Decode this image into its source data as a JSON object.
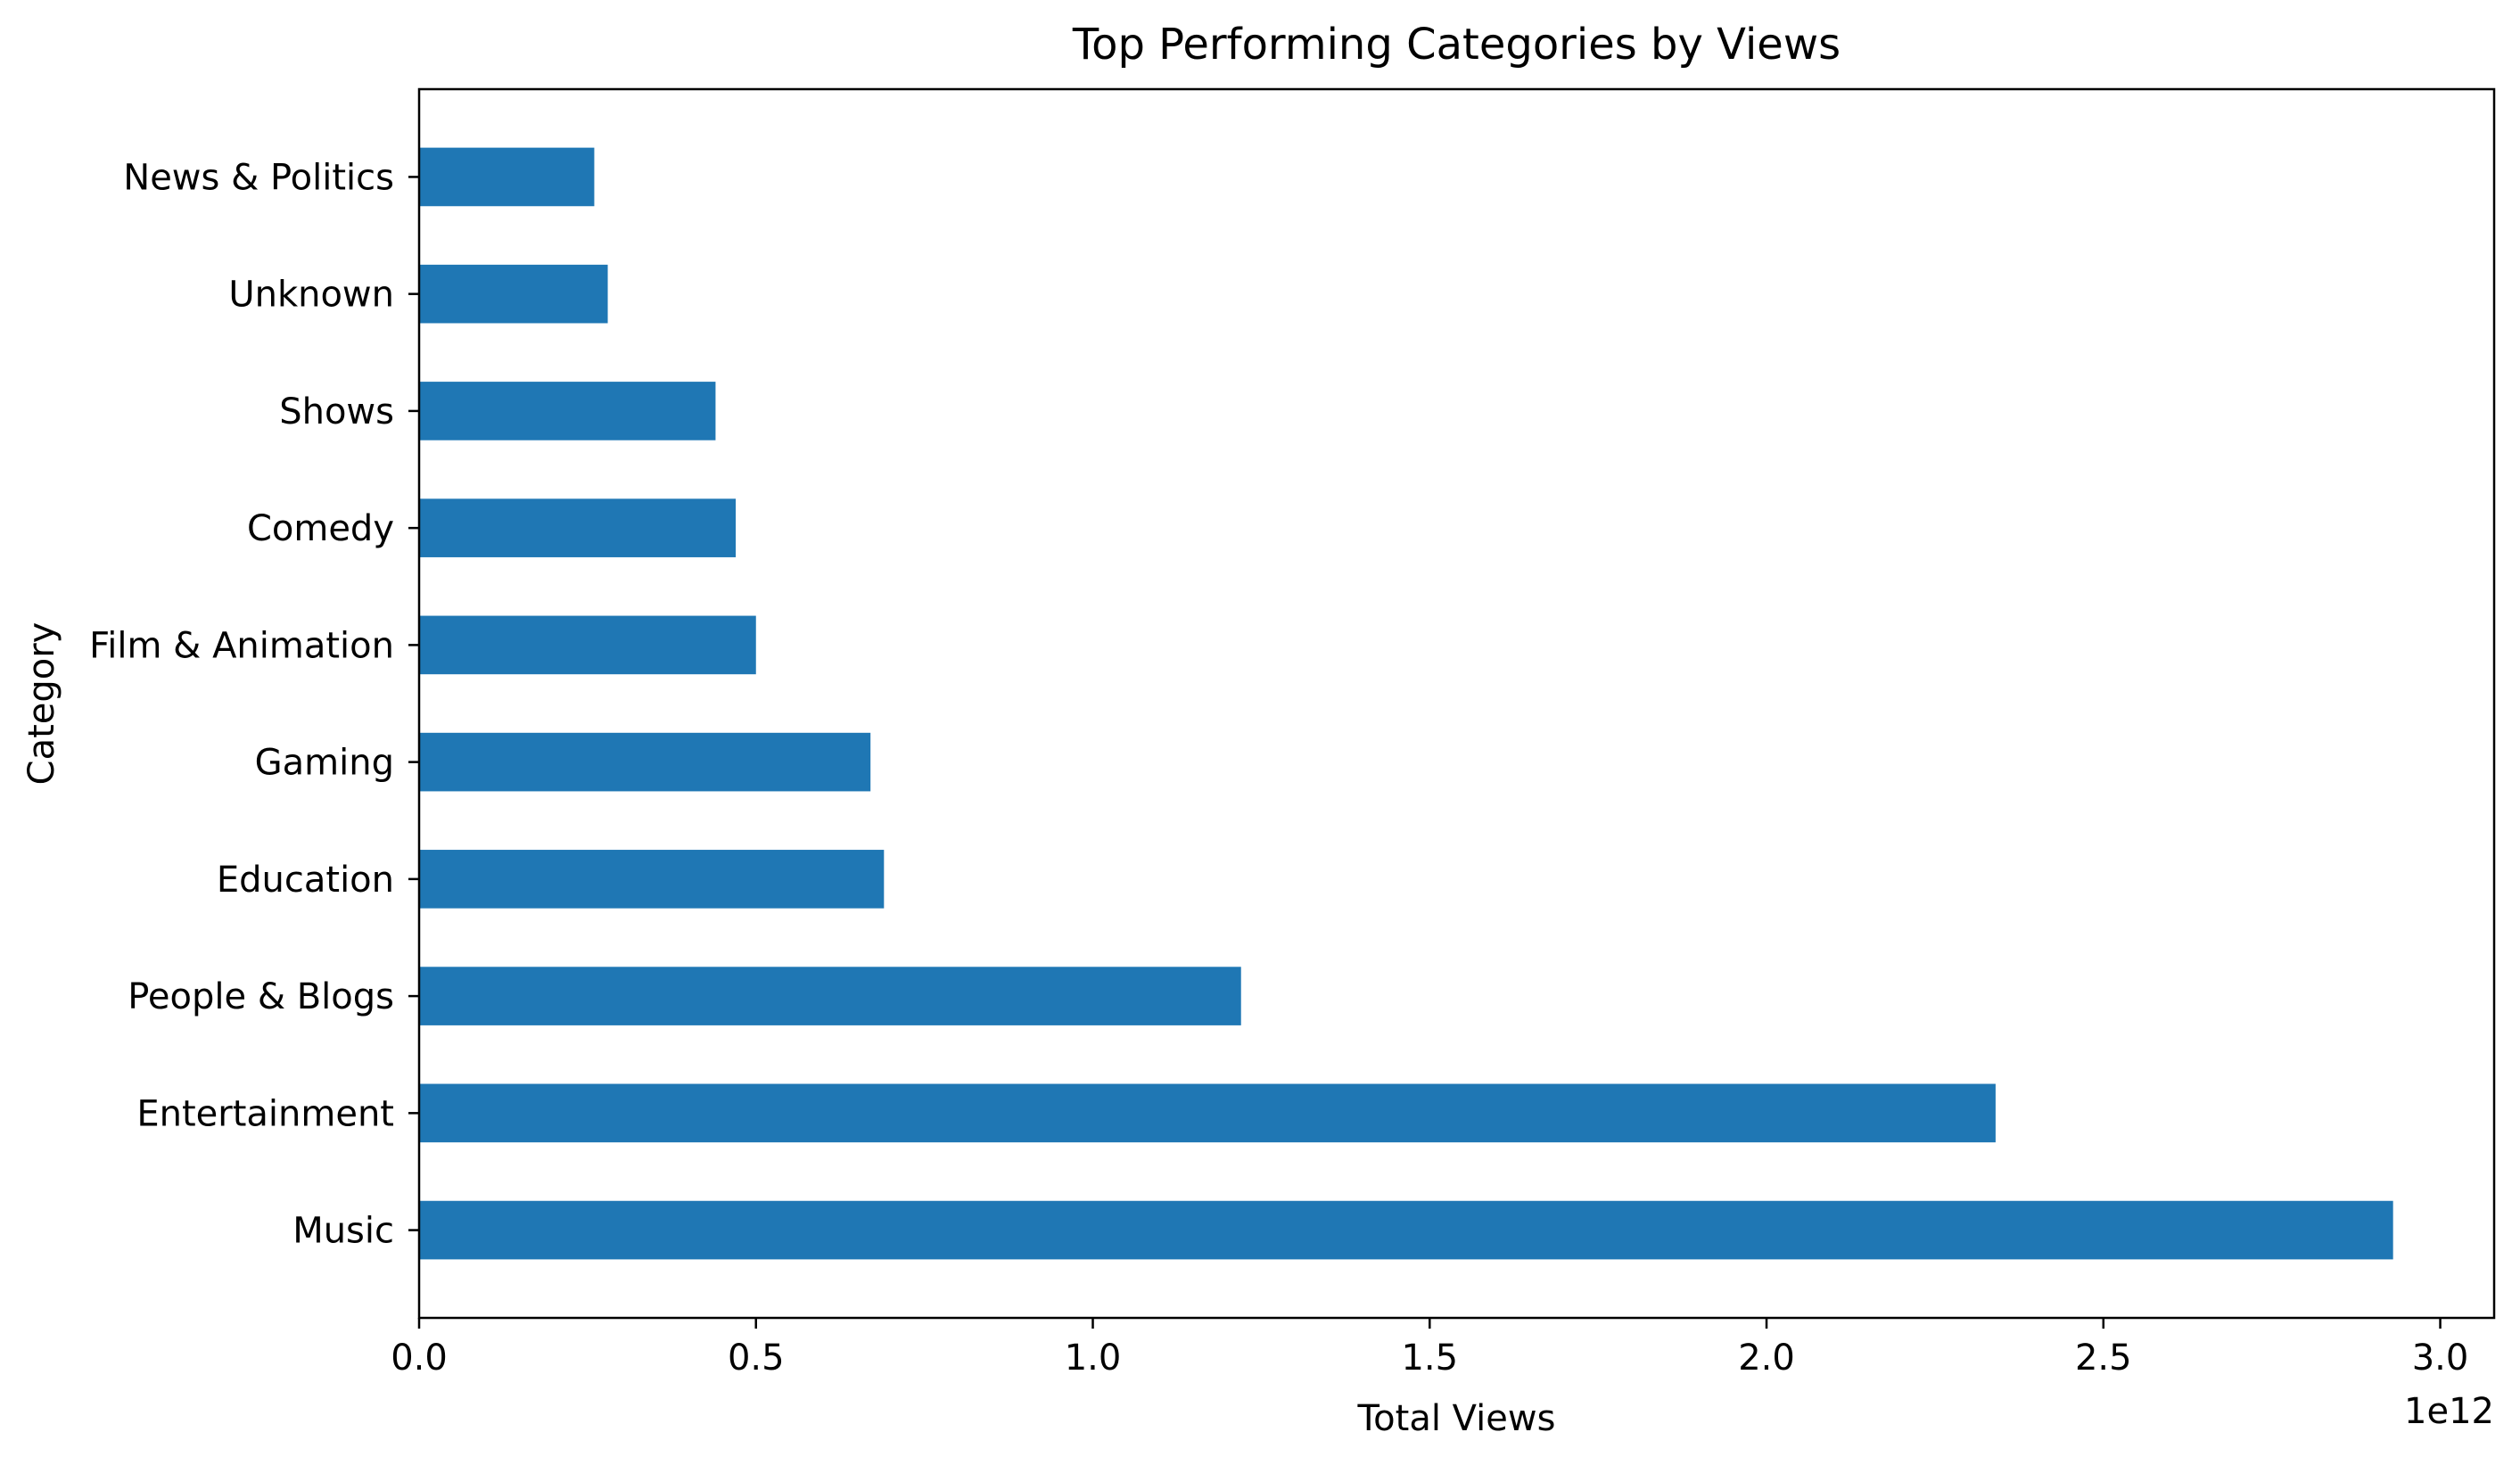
{
  "chart_data": {
    "type": "bar",
    "orientation": "horizontal",
    "title": "Top Performing Categories by Views",
    "xlabel": "Total Views",
    "ylabel": "Category",
    "x_scale_note": "1e12",
    "xlim": [
      0,
      3.08
    ],
    "x_ticks": [
      "0.0",
      "0.5",
      "1.0",
      "1.5",
      "2.0",
      "2.5",
      "3.0"
    ],
    "x_tick_values": [
      0.0,
      0.5,
      1.0,
      1.5,
      2.0,
      2.5,
      3.0
    ],
    "grid": false,
    "legend": "none",
    "bar_color": "#1f77b4",
    "categories": [
      "Music",
      "Entertainment",
      "People & Blogs",
      "Education",
      "Gaming",
      "Film & Animation",
      "Comedy",
      "Shows",
      "Unknown",
      "News & Politics"
    ],
    "values": [
      2.93,
      2.34,
      1.22,
      0.69,
      0.67,
      0.5,
      0.47,
      0.44,
      0.28,
      0.26
    ],
    "value_units": "1e12"
  }
}
